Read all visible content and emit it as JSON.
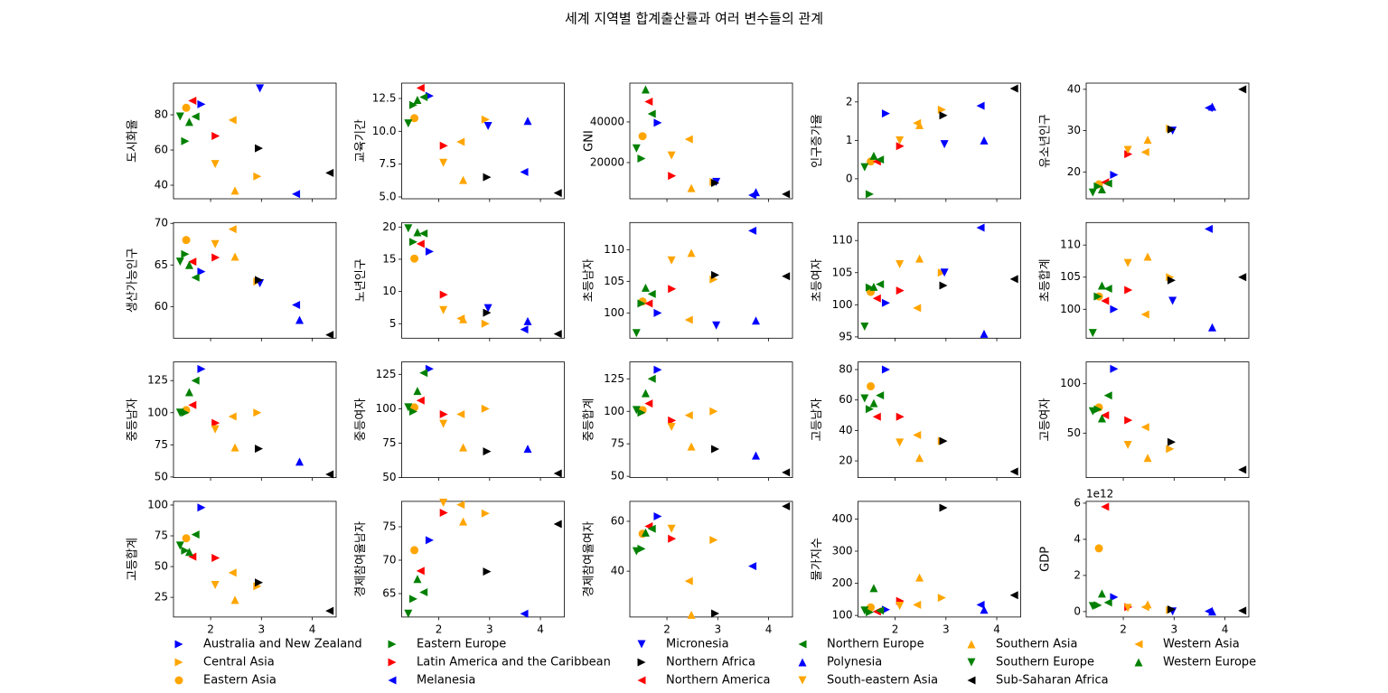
{
  "title": "세계 지역별 합계출산률과 여러 변수들의 관계",
  "chart_data": {
    "type": "scatter",
    "legend": "lower center",
    "xlim": [
      1.27,
      4.47
    ],
    "xticks": [
      2,
      3,
      4
    ],
    "series": [
      {
        "name": "Australia and New Zealand",
        "color": "#0000ff",
        "marker": ">",
        "x": 1.82
      },
      {
        "name": "Central Asia",
        "color": "#ffa500",
        "marker": ">",
        "x": 2.92
      },
      {
        "name": "Eastern Asia",
        "color": "#ffa500",
        "marker": "o",
        "x": 1.52
      },
      {
        "name": "Eastern Europe",
        "color": "#008000",
        "marker": ">",
        "x": 1.5
      },
      {
        "name": "Latin America and the Caribbean",
        "color": "#ff0000",
        "marker": ">",
        "x": 2.1
      },
      {
        "name": "Melanesia",
        "color": "#0000ff",
        "marker": "<",
        "x": 3.68
      },
      {
        "name": "Micronesia",
        "color": "#0000ff",
        "marker": "v",
        "x": 2.97
      },
      {
        "name": "Northern Africa",
        "color": "#000000",
        "marker": ">",
        "x": 2.95
      },
      {
        "name": "Northern America",
        "color": "#ff0000",
        "marker": "<",
        "x": 1.64
      },
      {
        "name": "Northern Europe",
        "color": "#008000",
        "marker": "<",
        "x": 1.7
      },
      {
        "name": "Polynesia",
        "color": "#0000ff",
        "marker": "^",
        "x": 3.75
      },
      {
        "name": "South-eastern Asia",
        "color": "#ffa500",
        "marker": "v",
        "x": 2.09
      },
      {
        "name": "Southern Asia",
        "color": "#ffa500",
        "marker": "^",
        "x": 2.48
      },
      {
        "name": "Southern Europe",
        "color": "#008000",
        "marker": "v",
        "x": 1.4
      },
      {
        "name": "Sub-Saharan Africa",
        "color": "#000000",
        "marker": "<",
        "x": 4.34
      },
      {
        "name": "Western Asia",
        "color": "#ffa500",
        "marker": "<",
        "x": 2.43
      },
      {
        "name": "Western Europe",
        "color": "#008000",
        "marker": "^",
        "x": 1.58
      }
    ],
    "panels": [
      {
        "ylabel": "도시화율",
        "ylim": [
          32.3,
          98
        ],
        "yticks": [
          40,
          60,
          80
        ],
        "values": [
          86,
          45,
          84,
          65,
          68,
          35,
          95,
          61,
          88,
          79,
          null,
          52,
          37,
          79,
          47,
          77,
          76
        ]
      },
      {
        "ylabel": "교육기간",
        "ylim": [
          4.86,
          13.67
        ],
        "yticks": [
          {
            "value": 5,
            "label": "5.0"
          },
          {
            "value": 7.5,
            "label": "7.5"
          },
          {
            "value": 10,
            "label": "10.0"
          },
          {
            "value": 12.5,
            "label": "12.5"
          }
        ],
        "values": [
          12.7,
          10.9,
          11.0,
          12.0,
          8.9,
          6.9,
          10.4,
          6.5,
          13.3,
          12.6,
          10.8,
          7.6,
          6.3,
          10.6,
          5.3,
          9.2,
          12.4
        ]
      },
      {
        "ylabel": "GNI",
        "ylim": [
          2200,
          59100
        ],
        "yticks": [
          20000,
          40000
        ],
        "values": [
          39600,
          10500,
          33000,
          22000,
          13500,
          4000,
          10500,
          10000,
          50000,
          44000,
          5500,
          23500,
          7500,
          27000,
          4500,
          31500,
          56000
        ]
      },
      {
        "ylabel": "인구증가율",
        "ylim": [
          -0.52,
          2.49
        ],
        "yticks": [
          0,
          1,
          2
        ],
        "values": [
          1.7,
          1.8,
          0.45,
          -0.4,
          0.85,
          1.9,
          0.9,
          1.65,
          0.45,
          0.5,
          1.0,
          1.0,
          1.4,
          0.3,
          2.35,
          1.45,
          0.6
        ]
      },
      {
        "ylabel": "유소년인구",
        "ylim": [
          13.5,
          41.5
        ],
        "yticks": [
          20,
          30,
          40
        ],
        "values": [
          19.3,
          30.5,
          17,
          16.5,
          24.3,
          35.5,
          30,
          30.3,
          17.5,
          17.2,
          35.8,
          25.3,
          27.8,
          15,
          40,
          24.8,
          15.8
        ]
      },
      {
        "ylabel": "생산가능인구",
        "ylim": [
          56.2,
          70.1
        ],
        "yticks": [
          60,
          65,
          70
        ],
        "values": [
          64.2,
          63,
          68,
          66.3,
          65.9,
          60.2,
          62.8,
          63.2,
          65.4,
          63.5,
          58.4,
          67.5,
          66,
          65.4,
          56.6,
          69.3,
          65
        ]
      },
      {
        "ylabel": "노년인구",
        "ylim": [
          2.75,
          20.7
        ],
        "yticks": [
          5,
          10,
          15,
          20
        ],
        "values": [
          16.2,
          5,
          15.1,
          17.7,
          9.5,
          4.1,
          7.4,
          6.7,
          17.4,
          19,
          5.4,
          7.1,
          5.7,
          19.8,
          3.4,
          5.8,
          19.2
        ]
      },
      {
        "ylabel": "초등남자",
        "ylim": [
          96,
          114.3
        ],
        "yticks": [
          100,
          105,
          110
        ],
        "values": [
          100,
          105.3,
          101.8,
          101.5,
          103.8,
          113,
          98,
          106,
          101.5,
          103,
          98.8,
          108.3,
          109.5,
          96.8,
          105.8,
          98.9,
          104
        ]
      },
      {
        "ylabel": "초등여자",
        "ylim": [
          94.8,
          112.8
        ],
        "yticks": [
          95,
          100,
          105,
          110
        ],
        "values": [
          100.3,
          105,
          102,
          102.7,
          102.2,
          112,
          105,
          103,
          101,
          103.2,
          95.5,
          106.3,
          107.2,
          96.6,
          104,
          99.5,
          102.8
        ]
      },
      {
        "ylabel": "초등합계",
        "ylim": [
          95.5,
          113.5
        ],
        "yticks": [
          100,
          105,
          110
        ],
        "values": [
          100,
          105,
          102,
          102,
          103,
          112.5,
          101.3,
          104.5,
          101.3,
          103.2,
          97.2,
          107.2,
          108.2,
          96.3,
          105,
          99.2,
          103.7
        ]
      },
      {
        "ylabel": "중등남자",
        "ylim": [
          49.5,
          139.5
        ],
        "yticks": [
          50,
          75,
          100,
          125
        ],
        "values": [
          134,
          100,
          102,
          100,
          92,
          null,
          null,
          72,
          106,
          125,
          62,
          87,
          73,
          100,
          52,
          97,
          116
        ]
      },
      {
        "ylabel": "중등여자",
        "ylim": [
          50,
          134
        ],
        "yticks": [
          50,
          75,
          100,
          125
        ],
        "values": [
          129,
          100,
          101,
          98,
          96,
          null,
          null,
          69,
          106,
          126,
          71,
          89,
          72,
          101,
          53,
          96,
          113
        ]
      },
      {
        "ylabel": "중등합계",
        "ylim": [
          49,
          138
        ],
        "yticks": [
          50,
          75,
          100,
          125
        ],
        "values": [
          132,
          100,
          101,
          99,
          93,
          null,
          null,
          71,
          106,
          125,
          66,
          88,
          73,
          101,
          53,
          97,
          114
        ]
      },
      {
        "ylabel": "고등남자",
        "ylim": [
          9,
          85
        ],
        "yticks": [
          20,
          40,
          60,
          80
        ],
        "values": [
          80,
          33,
          69,
          54,
          49,
          null,
          null,
          33,
          49,
          63,
          null,
          32,
          22,
          61,
          13,
          37,
          58
        ]
      },
      {
        "ylabel": "고등여자",
        "ylim": [
          5,
          122
        ],
        "yticks": [
          50,
          100
        ],
        "values": [
          115,
          34,
          76,
          74,
          63,
          null,
          null,
          41,
          68,
          88,
          null,
          38,
          25,
          72,
          13,
          56,
          65
        ]
      },
      {
        "ylabel": "고등합계",
        "ylim": [
          9,
          103
        ],
        "yticks": [
          25,
          50,
          75,
          100
        ],
        "values": [
          98,
          34,
          73,
          63,
          57,
          null,
          null,
          37,
          58,
          76,
          null,
          35,
          23,
          67,
          14,
          45,
          62
        ]
      },
      {
        "ylabel": "경제참여율남자",
        "ylim": [
          61.5,
          78.8
        ],
        "yticks": [
          65,
          70,
          75
        ],
        "values": [
          73,
          77,
          71.5,
          64.2,
          77.1,
          62,
          null,
          68.3,
          68.4,
          65.2,
          null,
          78.6,
          75.8,
          62,
          75.4,
          78.3,
          67.2
        ]
      },
      {
        "ylabel": "경제참여율여자",
        "ylim": [
          21.6,
          68
        ],
        "yticks": [
          40,
          60
        ],
        "values": [
          62,
          52.5,
          55,
          49,
          53,
          42,
          null,
          23,
          58,
          57,
          null,
          57,
          22.5,
          48,
          66,
          36,
          55.5
        ]
      },
      {
        "ylabel": "물가지수",
        "ylim": [
          95,
          455
        ],
        "yticks": [
          100,
          200,
          300,
          400
        ],
        "values": [
          118,
          155,
          125,
          110,
          145,
          133,
          null,
          435,
          112,
          115,
          118,
          130,
          218,
          115,
          163,
          133,
          185
        ]
      },
      {
        "ylabel": "GDP",
        "y_offset_label": "1e12",
        "ylim": [
          -300000000000,
          6100000000000
        ],
        "yticks": [
          0,
          {
            "value": 2000000000000,
            "label": "2"
          },
          {
            "value": 4000000000000,
            "label": "4"
          },
          {
            "value": 6000000000000,
            "label": "6"
          }
        ],
        "values": [
          800000000000,
          80000000000,
          3500000000000,
          350000000000,
          250000000000,
          20000000000,
          10000000000,
          120000000000,
          5800000000000,
          500000000000,
          10000000000,
          200000000000,
          400000000000,
          300000000000,
          50000000000,
          250000000000,
          1000000000000
        ]
      }
    ]
  }
}
